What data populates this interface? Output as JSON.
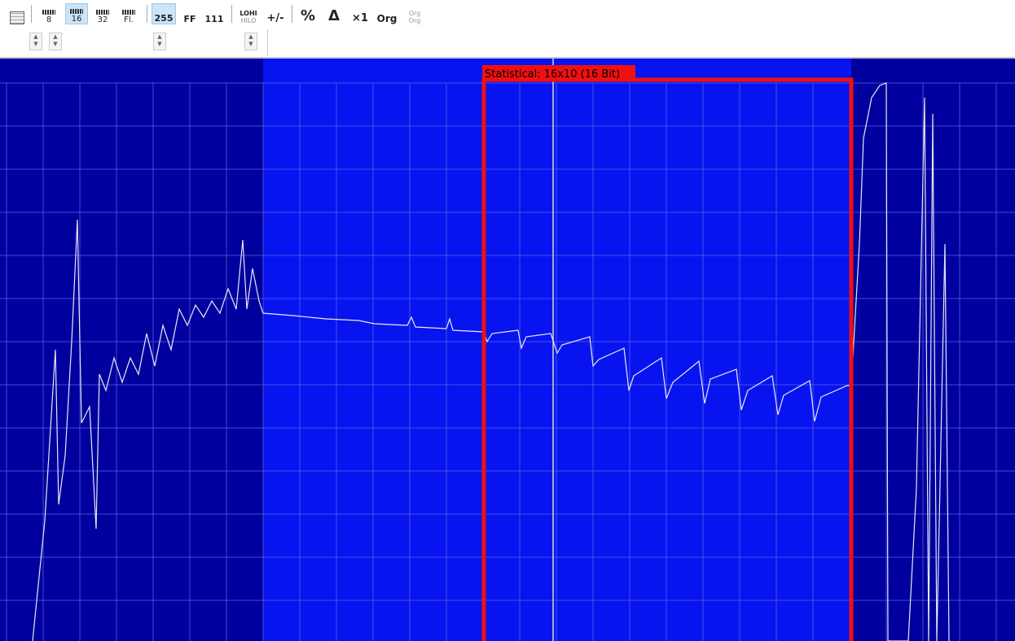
{
  "toolbar": {
    "width_buttons": [
      "8",
      "16",
      "32",
      "Fl."
    ],
    "format_buttons": [
      "255",
      "FF",
      "111"
    ],
    "byte_order": {
      "top": "LOHI",
      "bottom": "HILO"
    },
    "sign": "+/-",
    "percent": "%",
    "delta": "Δ",
    "scale": "×1",
    "org": "Org",
    "org_disabled": [
      "Org",
      "Org"
    ]
  },
  "view": {
    "selection_label": "Statistical: 16x10 (16 Bit)"
  }
}
